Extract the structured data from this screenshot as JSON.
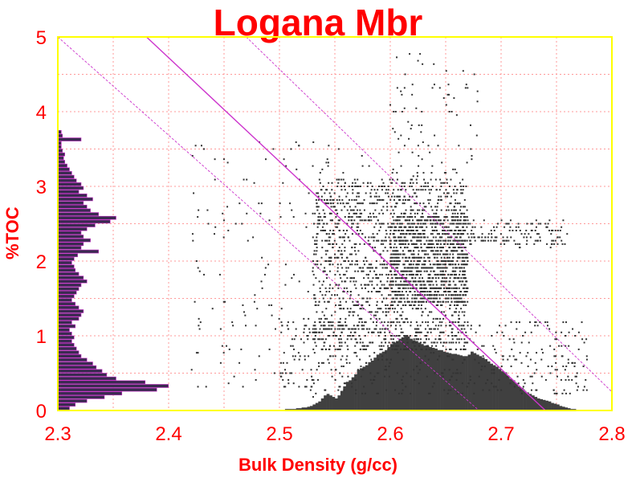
{
  "chart_data": {
    "type": "scatter",
    "title": "Logana Mbr",
    "xlabel": "Bulk Density (g/cc)",
    "ylabel": "%TOC",
    "xlim": [
      2.3,
      2.8
    ],
    "ylim": [
      0,
      5
    ],
    "xticks": [
      "2.3",
      "2.4",
      "2.5",
      "2.6",
      "2.7",
      "2.8"
    ],
    "yticks": [
      "0",
      "1",
      "2",
      "3",
      "4",
      "5"
    ],
    "grid": true,
    "colors": {
      "frame": "#ffff00",
      "grid": "#ff9999",
      "points": "#333333",
      "histogram": "#3a2a50",
      "lines": "#cc33cc",
      "text": "#ff0000"
    },
    "clusters": [
      {
        "x": [
          2.53,
          2.67
        ],
        "y": [
          0.8,
          3.1
        ],
        "n": 1600
      },
      {
        "x": [
          2.6,
          2.67
        ],
        "y": [
          1.4,
          2.6
        ],
        "n": 900
      },
      {
        "x": [
          2.42,
          2.6
        ],
        "y": [
          0.3,
          3.6
        ],
        "n": 220
      },
      {
        "x": [
          2.5,
          2.78
        ],
        "y": [
          0.2,
          1.2
        ],
        "n": 500
      },
      {
        "x": [
          2.6,
          2.68
        ],
        "y": [
          3.0,
          4.8
        ],
        "n": 90
      },
      {
        "x": [
          2.67,
          2.76
        ],
        "y": [
          2.2,
          2.55
        ],
        "n": 140
      }
    ],
    "trend_lines": [
      {
        "x": [
          2.3,
          2.68
        ],
        "y": [
          5.0,
          0.0
        ]
      },
      {
        "x": [
          2.38,
          2.74
        ],
        "y": [
          5.0,
          0.0
        ]
      },
      {
        "x": [
          2.47,
          2.8
        ],
        "y": [
          5.0,
          0.25
        ]
      }
    ],
    "x_histogram": {
      "bin_start": 2.3,
      "bin_width": 0.0025,
      "counts_rel": [
        0.01,
        0,
        0,
        0,
        0,
        0.01,
        0,
        0,
        0,
        0,
        0,
        0,
        0,
        0,
        0,
        0,
        0,
        0,
        0,
        0,
        0,
        0,
        0,
        0,
        0,
        0,
        0,
        0,
        0.01,
        0,
        0,
        0,
        0,
        0,
        0,
        0,
        0,
        0,
        0,
        0,
        0,
        0,
        0,
        0,
        0,
        0,
        0,
        0,
        0,
        0,
        0,
        0,
        0.01,
        0,
        0,
        0,
        0,
        0,
        0.01,
        0,
        0,
        0,
        0,
        0,
        0.01,
        0,
        0,
        0,
        0,
        0,
        0,
        0,
        0,
        0,
        0,
        0,
        0,
        0,
        0,
        0,
        0,
        0,
        0.02,
        0.02,
        0.02,
        0.02,
        0.03,
        0.03,
        0.04,
        0.04,
        0.05,
        0.06,
        0.08,
        0.1,
        0.12,
        0.16,
        0.2,
        0.22,
        0.2,
        0.18,
        0.16,
        0.2,
        0.26,
        0.32,
        0.38,
        0.4,
        0.44,
        0.48,
        0.54,
        0.56,
        0.58,
        0.6,
        0.64,
        0.66,
        0.7,
        0.74,
        0.76,
        0.78,
        0.8,
        0.84,
        0.88,
        0.9,
        0.92,
        0.95,
        0.97,
        1.0,
        0.98,
        0.95,
        0.93,
        0.92,
        0.9,
        0.88,
        0.86,
        0.85,
        0.84,
        0.83,
        0.82,
        0.8,
        0.8,
        0.78,
        0.77,
        0.76,
        0.75,
        0.75,
        0.74,
        0.73,
        0.72,
        0.72,
        0.74,
        0.78,
        0.76,
        0.74,
        0.72,
        0.7,
        0.68,
        0.65,
        0.62,
        0.6,
        0.58,
        0.55,
        0.52,
        0.5,
        0.46,
        0.42,
        0.4,
        0.36,
        0.32,
        0.3,
        0.26,
        0.24,
        0.22,
        0.2,
        0.18,
        0.16,
        0.15,
        0.14,
        0.13,
        0.12,
        0.1,
        0.09,
        0.08,
        0.06,
        0.05,
        0.04,
        0.03,
        0.02,
        0.02
      ]
    },
    "y_histogram": {
      "bin_start": 0,
      "bin_width": 0.05,
      "counts_rel": [
        0.1,
        0.15,
        0.25,
        0.4,
        0.55,
        0.85,
        0.95,
        0.75,
        0.5,
        0.42,
        0.38,
        0.33,
        0.3,
        0.25,
        0.2,
        0.18,
        0.16,
        0.14,
        0.12,
        0.14,
        0.12,
        0.1,
        0.15,
        0.12,
        0.18,
        0.2,
        0.22,
        0.18,
        0.15,
        0.12,
        0.14,
        0.16,
        0.18,
        0.2,
        0.25,
        0.22,
        0.18,
        0.15,
        0.14,
        0.12,
        0.14,
        0.17,
        0.35,
        0.2,
        0.22,
        0.28,
        0.22,
        0.2,
        0.25,
        0.32,
        0.45,
        0.5,
        0.35,
        0.28,
        0.25,
        0.22,
        0.3,
        0.25,
        0.18,
        0.22,
        0.2,
        0.16,
        0.14,
        0.12,
        0.1,
        0.08,
        0.06,
        0.05,
        0.06,
        0.04,
        0.03,
        0.03,
        0.2,
        0.04,
        0.03,
        0,
        0,
        0,
        0,
        0,
        0,
        0,
        0,
        0,
        0,
        0,
        0,
        0,
        0,
        0,
        0,
        0,
        0,
        0,
        0,
        0,
        0,
        0,
        0,
        0
      ]
    }
  }
}
